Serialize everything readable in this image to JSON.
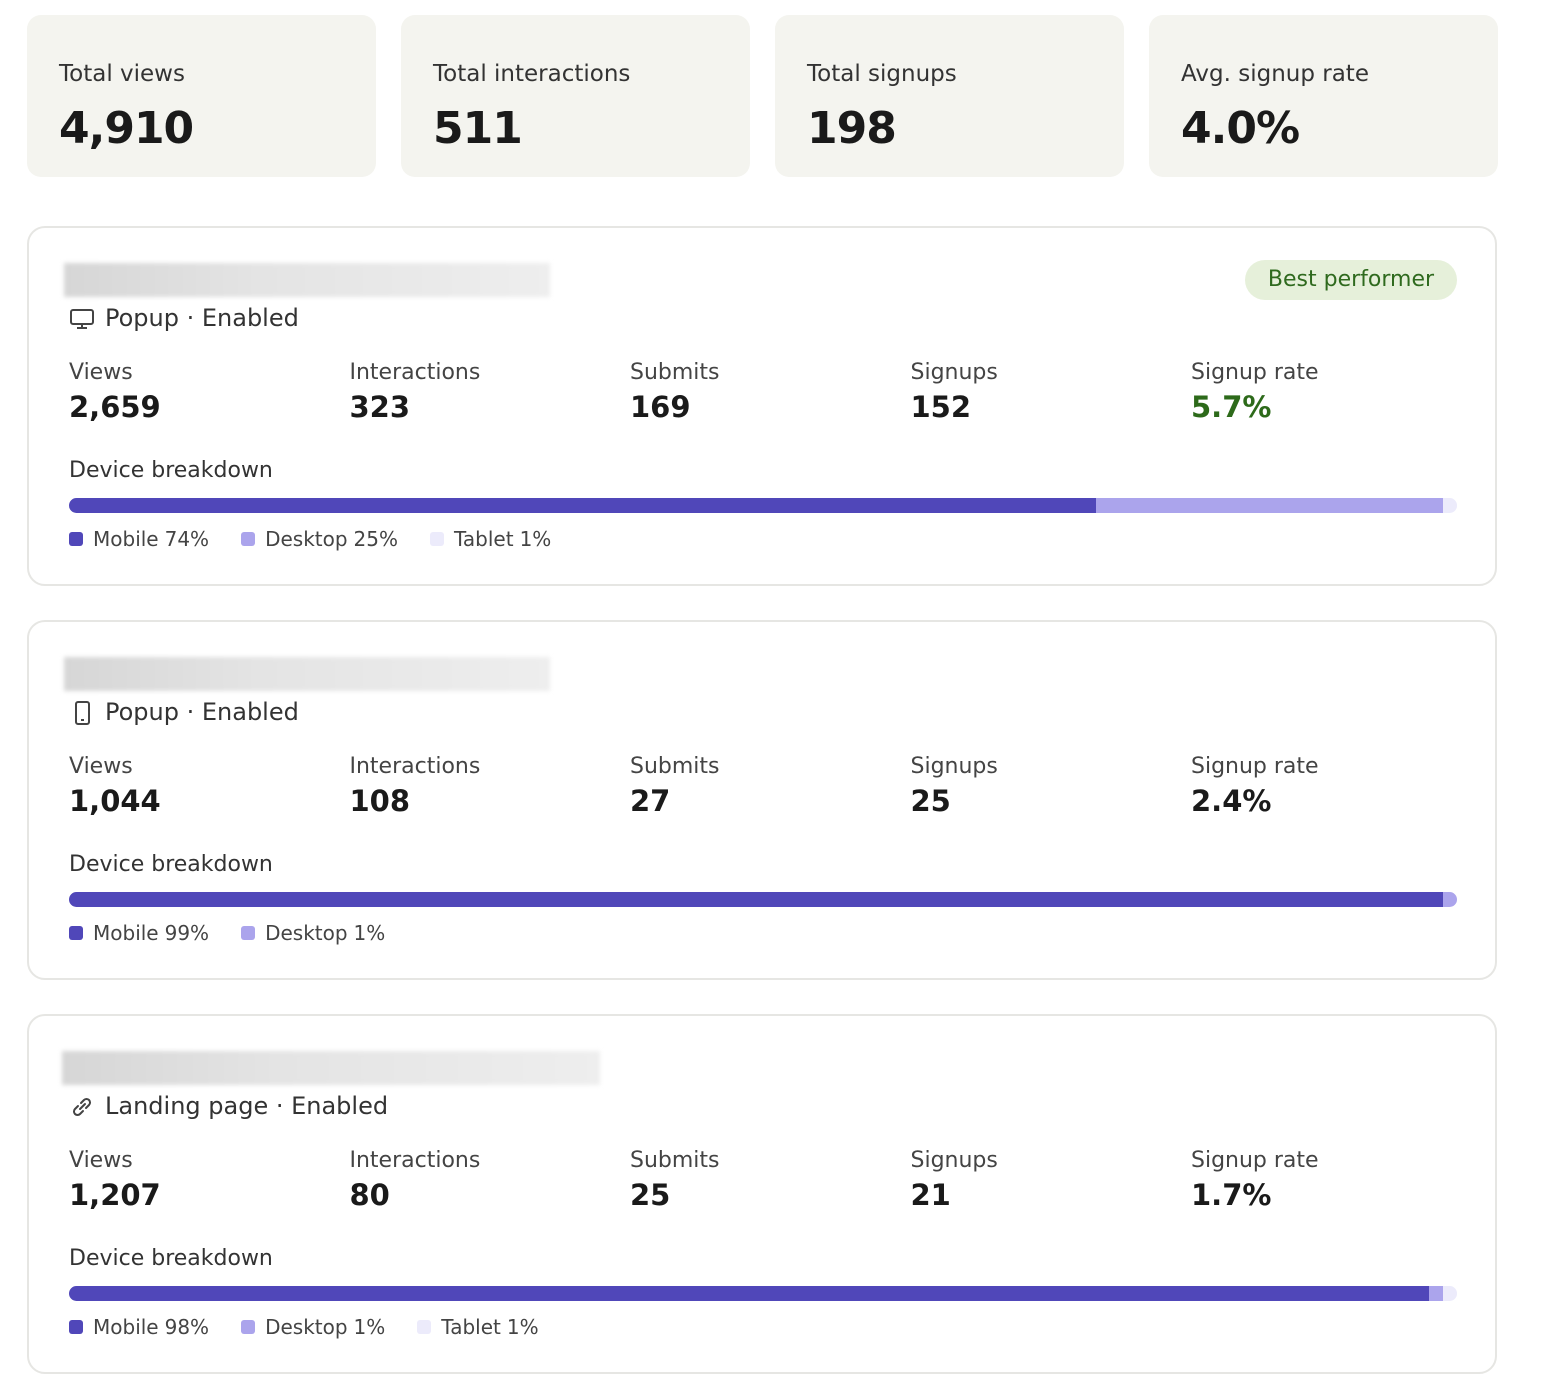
{
  "summary": [
    {
      "label": "Total views",
      "value": "4,910"
    },
    {
      "label": "Total interactions",
      "value": "511"
    },
    {
      "label": "Total signups",
      "value": "198"
    },
    {
      "label": "Avg. signup rate",
      "value": "4.0%"
    }
  ],
  "campaigns": [
    {
      "type": "Popup · Enabled",
      "badge": "Best performer",
      "metrics": [
        {
          "label": "Views",
          "value": "2,659"
        },
        {
          "label": "Interactions",
          "value": "323"
        },
        {
          "label": "Submits",
          "value": "169"
        },
        {
          "label": "Signups",
          "value": "152"
        },
        {
          "label": "Signup rate",
          "value": "5.7%"
        }
      ],
      "device_title": "Device breakdown",
      "devices": [
        {
          "name": "Mobile",
          "value": 74,
          "label": "74%"
        },
        {
          "name": "Desktop",
          "value": 25,
          "label": "25%"
        },
        {
          "name": "Tablet",
          "value": 1,
          "label": "1%"
        }
      ]
    },
    {
      "type": "Popup · Enabled",
      "metrics": [
        {
          "label": "Views",
          "value": "1,044"
        },
        {
          "label": "Interactions",
          "value": "108"
        },
        {
          "label": "Submits",
          "value": "27"
        },
        {
          "label": "Signups",
          "value": "25"
        },
        {
          "label": "Signup rate",
          "value": "2.4%"
        }
      ],
      "device_title": "Device breakdown",
      "devices": [
        {
          "name": "Mobile",
          "value": 99,
          "label": "99%"
        },
        {
          "name": "Desktop",
          "value": 1,
          "label": "1%"
        }
      ]
    },
    {
      "type": "Landing page · Enabled",
      "metrics": [
        {
          "label": "Views",
          "value": "1,207"
        },
        {
          "label": "Interactions",
          "value": "80"
        },
        {
          "label": "Submits",
          "value": "25"
        },
        {
          "label": "Signups",
          "value": "21"
        },
        {
          "label": "Signup rate",
          "value": "1.7%"
        }
      ],
      "device_title": "Device breakdown",
      "devices": [
        {
          "name": "Mobile",
          "value": 98,
          "label": "98%"
        },
        {
          "name": "Desktop",
          "value": 1,
          "label": "1%"
        },
        {
          "name": "Tablet",
          "value": 1,
          "label": "1%"
        }
      ]
    }
  ]
}
